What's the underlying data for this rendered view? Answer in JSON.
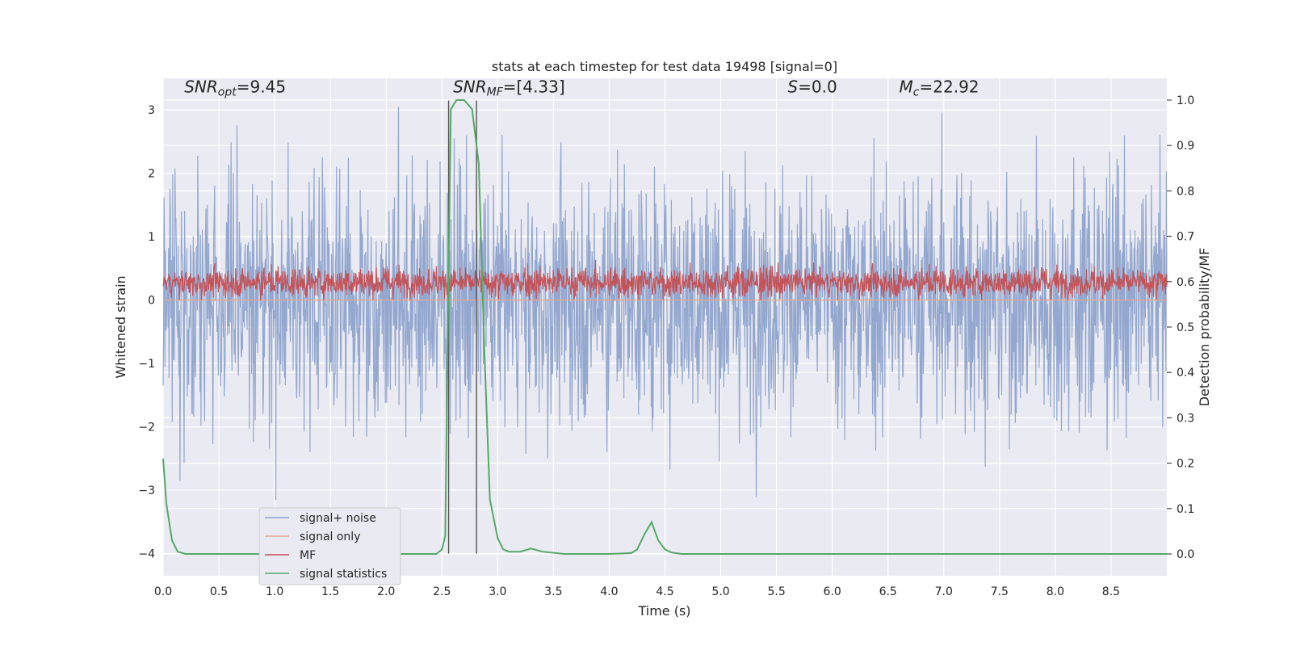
{
  "chart_data": {
    "type": "line",
    "title": "stats at each timestep for test data 19498 [signal=0]",
    "xlabel": "Time (s)",
    "ylabel": "Whitened strain",
    "y2label": "Detection probability/MF",
    "xlim": [
      0,
      9
    ],
    "ylim": [
      -4.35,
      3.5
    ],
    "y2lim": [
      -0.048,
      1.048
    ],
    "x_ticks": [
      0.0,
      0.5,
      1.0,
      1.5,
      2.0,
      2.5,
      3.0,
      3.5,
      4.0,
      4.5,
      5.0,
      5.5,
      6.0,
      6.5,
      7.0,
      7.5,
      8.0,
      8.5
    ],
    "y_ticks": [
      3,
      2,
      1,
      0,
      -1,
      -2,
      -3,
      -4
    ],
    "y2_ticks": [
      1.0,
      0.9,
      0.8,
      0.7,
      0.6,
      0.5,
      0.4,
      0.3,
      0.2,
      0.1,
      0.0
    ],
    "grid": true,
    "legend_placement": "lower-left",
    "annotations": [
      {
        "text": "SNR_opt=9.45",
        "x": 0.19,
        "y": 3.28
      },
      {
        "text": "SNR_MF=[4.33]",
        "x": 2.6,
        "y": 3.28
      },
      {
        "text": "S=0.0",
        "x": 5.6,
        "y": 3.28
      },
      {
        "text": "M_c=22.92",
        "x": 6.6,
        "y": 3.28
      }
    ],
    "vlines": [
      {
        "x": 2.56,
        "y_from": -4.0,
        "y_to": 3.15
      },
      {
        "x": 2.81,
        "y_from": -4.0,
        "y_to": 3.15
      }
    ],
    "series": [
      {
        "name": "signal+ noise",
        "color": "#8ea3cc",
        "axis": "left",
        "style": "noise",
        "center": 0.0,
        "spread": 2.5,
        "y_range": [
          -3.8,
          3.1
        ]
      },
      {
        "name": "signal only",
        "color": "#e8a58c",
        "axis": "left",
        "style": "flat",
        "value": 0.0
      },
      {
        "name": "MF",
        "color": "#c44e52",
        "axis": "left",
        "style": "noise",
        "center": 0.28,
        "spread": 0.3,
        "y_range": [
          0.0,
          1.0
        ]
      },
      {
        "name": "signal statistics",
        "color": "#55a868",
        "axis": "right",
        "style": "line",
        "x": [
          0.0,
          0.03,
          0.08,
          0.13,
          0.2,
          0.3,
          0.5,
          1.0,
          1.5,
          2.0,
          2.45,
          2.5,
          2.53,
          2.55,
          2.58,
          2.63,
          2.7,
          2.77,
          2.83,
          2.88,
          2.93,
          3.0,
          3.05,
          3.1,
          3.2,
          3.3,
          3.4,
          3.6,
          4.0,
          4.2,
          4.25,
          4.32,
          4.38,
          4.44,
          4.5,
          4.56,
          4.65,
          5.0,
          9.0
        ],
        "y": [
          0.21,
          0.11,
          0.03,
          0.005,
          0.0,
          0.0,
          0.0,
          0.0,
          0.0,
          0.0,
          0.0,
          0.01,
          0.04,
          0.45,
          0.98,
          1.0,
          1.0,
          0.98,
          0.86,
          0.45,
          0.12,
          0.035,
          0.01,
          0.005,
          0.005,
          0.012,
          0.005,
          0.0,
          0.0,
          0.002,
          0.01,
          0.045,
          0.07,
          0.03,
          0.01,
          0.003,
          0.0,
          0.0,
          0.0
        ]
      }
    ]
  }
}
